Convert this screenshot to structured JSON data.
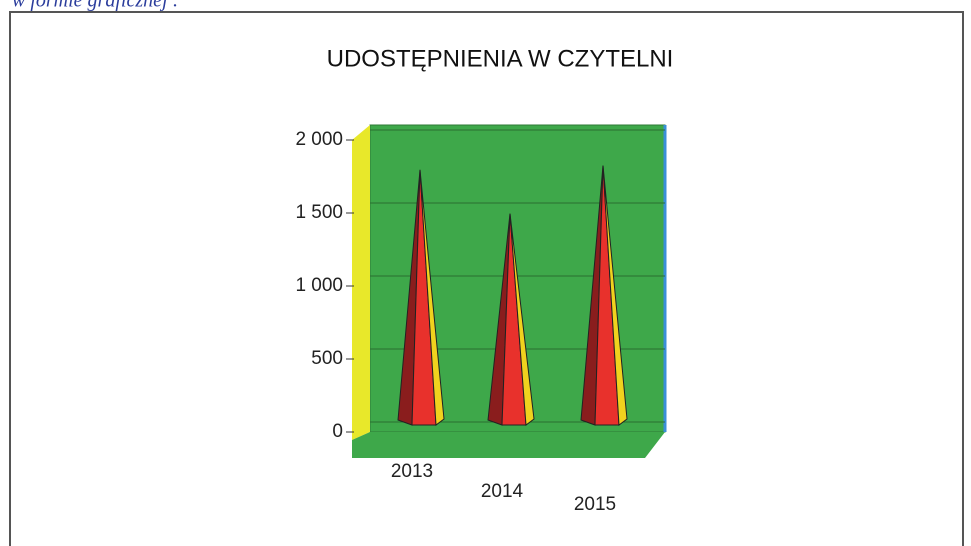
{
  "caption": "w formie graficznej :",
  "chart_data": {
    "type": "pyramid",
    "title": "UDOSTĘPNIENIA  W CZYTELNI",
    "categories": [
      "2013",
      "2014",
      "2015"
    ],
    "values": [
      1850,
      1550,
      1880
    ],
    "ylim": [
      0,
      2000
    ],
    "yticks": [
      0,
      500,
      {
        "value": 1000,
        "label": "1 000"
      },
      {
        "value": 1500,
        "label": "1 500"
      },
      {
        "value": 2000,
        "label": "2 000"
      }
    ],
    "grid": true,
    "wall_color": "#3ea84a",
    "color": "#e8312c"
  }
}
